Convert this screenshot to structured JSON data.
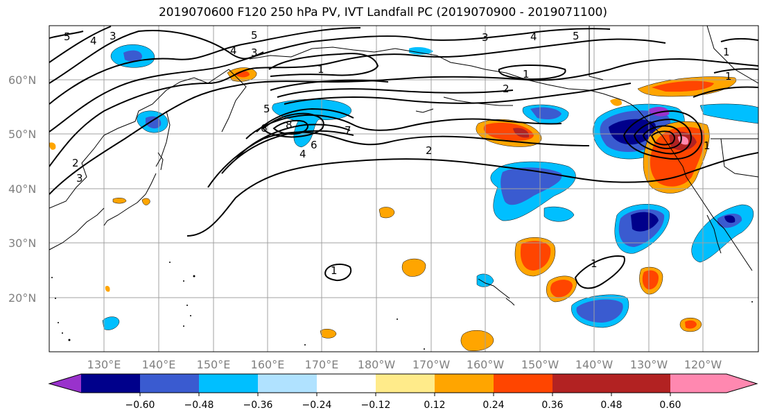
{
  "title": "2019070600 F120 250 hPa PV, IVT Landfall PC (2019070900 - 2019071100)",
  "map": {
    "lat_ticks": [
      "60°N",
      "50°N",
      "40°N",
      "30°N",
      "20°N"
    ],
    "lon_ticks": [
      "130°E",
      "140°E",
      "150°E",
      "160°E",
      "170°E",
      "180°W",
      "170°W",
      "160°W",
      "150°W",
      "140°W",
      "130°W",
      "120°W"
    ],
    "contour_labels": [
      "5",
      "4",
      "3",
      "5",
      "4",
      "3",
      "1",
      "3",
      "4",
      "5",
      "1",
      "1",
      "1",
      "2",
      "8",
      "7",
      "6",
      "4",
      "2",
      "1",
      "1",
      "3",
      "1",
      "6",
      "2",
      "5"
    ]
  },
  "colorbar": {
    "colors": [
      "#9932cc",
      "#00008b",
      "#3a5bd0",
      "#00bfff",
      "#b0e2ff",
      "#ffffff",
      "#ffeb8a",
      "#ffa500",
      "#ff4500",
      "#b22222",
      "#ff88b0"
    ],
    "tick_labels": [
      "−0.60",
      "−0.48",
      "−0.36",
      "−0.24",
      "−0.12",
      "0.12",
      "0.24",
      "0.36",
      "0.48",
      "0.60"
    ]
  }
}
